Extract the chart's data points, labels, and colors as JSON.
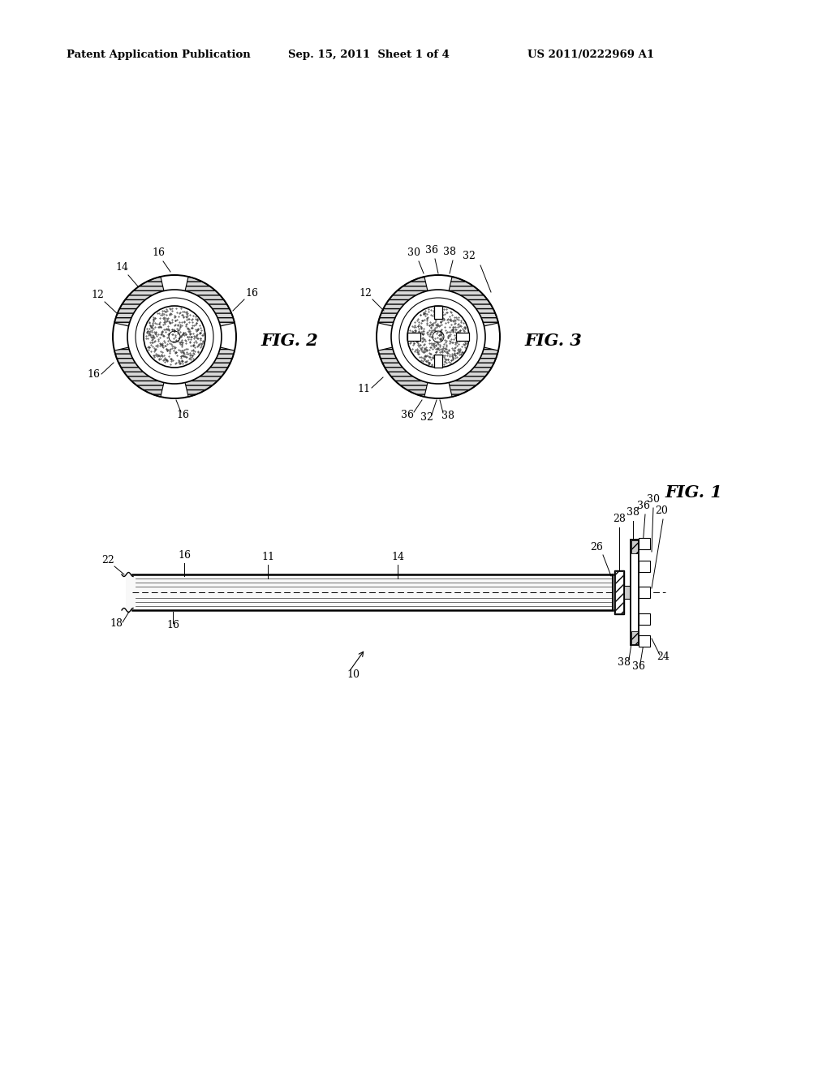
{
  "bg_color": "#ffffff",
  "header_left": "Patent Application Publication",
  "header_mid": "Sep. 15, 2011  Sheet 1 of 4",
  "header_right": "US 2011/0222969 A1",
  "fig1_label": "FIG. 1",
  "fig2_label": "FIG. 2",
  "fig3_label": "FIG. 3"
}
